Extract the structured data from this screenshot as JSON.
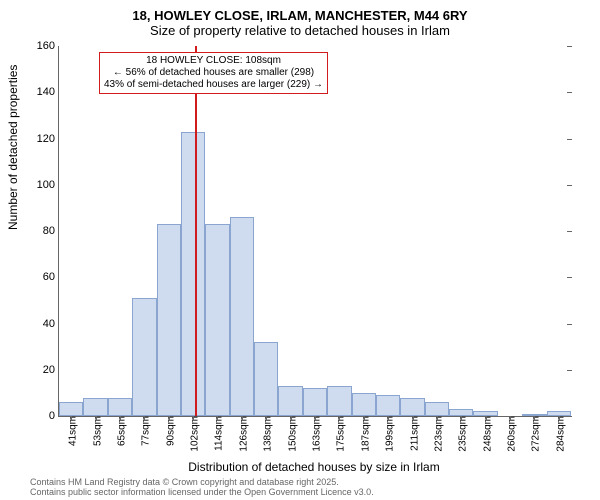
{
  "title_line1": "18, HOWLEY CLOSE, IRLAM, MANCHESTER, M44 6RY",
  "title_line2": "Size of property relative to detached houses in Irlam",
  "ylabel": "Number of detached properties",
  "xlabel": "Distribution of detached houses by size in Irlam",
  "ylim": [
    0,
    160
  ],
  "ytick_step": 20,
  "yticks": [
    0,
    20,
    40,
    60,
    80,
    100,
    120,
    140,
    160
  ],
  "categories": [
    "41sqm",
    "53sqm",
    "65sqm",
    "77sqm",
    "90sqm",
    "102sqm",
    "114sqm",
    "126sqm",
    "138sqm",
    "150sqm",
    "163sqm",
    "175sqm",
    "187sqm",
    "199sqm",
    "211sqm",
    "223sqm",
    "235sqm",
    "248sqm",
    "260sqm",
    "272sqm",
    "284sqm"
  ],
  "values": [
    6,
    8,
    8,
    51,
    83,
    123,
    83,
    86,
    32,
    13,
    12,
    13,
    10,
    9,
    8,
    6,
    3,
    2,
    0,
    1,
    2
  ],
  "bar_fill": "#cfdcf0",
  "bar_stroke": "#8aa5cf",
  "grid_color": "#ffffff",
  "reference_line_x": "108sqm",
  "reference_line_color": "#d01c1c",
  "reference_line_pos": 0.265,
  "annotation": {
    "line1": "18 HOWLEY CLOSE: 108sqm",
    "line2": "← 56% of detached houses are smaller (298)",
    "line3": "43% of semi-detached houses are larger (229) →",
    "border_color": "#d01c1c"
  },
  "footer_line1": "Contains HM Land Registry data © Crown copyright and database right 2025.",
  "footer_line2": "Contains public sector information licensed under the Open Government Licence v3.0.",
  "title_fontsize": 13,
  "label_fontsize": 12,
  "tick_fontsize": 11,
  "background_color": "#ffffff"
}
